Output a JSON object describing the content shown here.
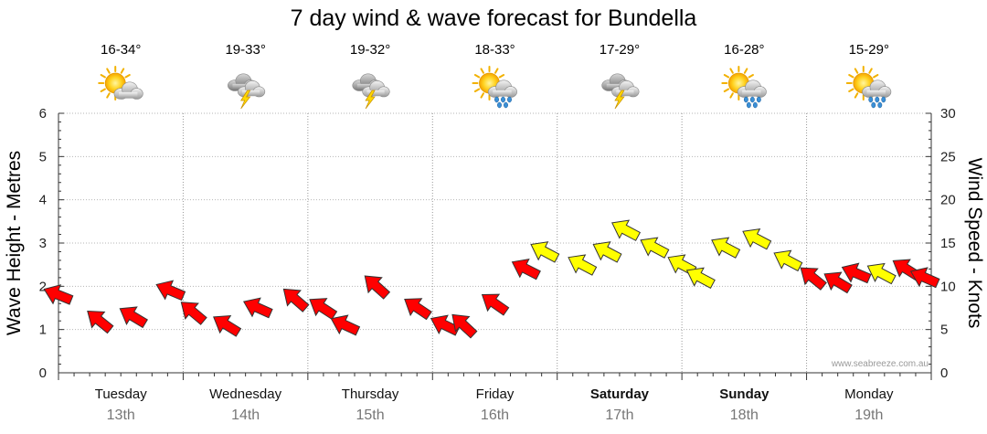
{
  "chart_data": {
    "type": "line",
    "title": "7 day wind & wave forecast for Bundella",
    "ylabel_left": "Wave Height - Metres",
    "ylabel_right": "Wind Speed - Knots",
    "ylim_left": [
      0,
      6
    ],
    "ylim_right": [
      0,
      30
    ],
    "left_ticks": [
      "0",
      "1",
      "2",
      "3",
      "4",
      "5",
      "6"
    ],
    "right_ticks": [
      "0",
      "5",
      "10",
      "15",
      "20",
      "25",
      "30"
    ],
    "grid": true,
    "credit": "www.seabreeze.com.au",
    "days": [
      {
        "name": "Tuesday",
        "date": "13th",
        "weekend": false,
        "temp": "16-34°",
        "icon": "sun-cloud-icon"
      },
      {
        "name": "Wednesday",
        "date": "14th",
        "weekend": false,
        "temp": "19-33°",
        "icon": "storm-cloud-icon"
      },
      {
        "name": "Thursday",
        "date": "15th",
        "weekend": false,
        "temp": "19-32°",
        "icon": "storm-cloud-icon"
      },
      {
        "name": "Friday",
        "date": "16th",
        "weekend": false,
        "temp": "18-33°",
        "icon": "sun-rain-icon"
      },
      {
        "name": "Saturday",
        "date": "17th",
        "weekend": true,
        "temp": "17-29°",
        "icon": "storm-cloud-icon"
      },
      {
        "name": "Sunday",
        "date": "18th",
        "weekend": true,
        "temp": "16-28°",
        "icon": "sun-rain-icon"
      },
      {
        "name": "Monday",
        "date": "19th",
        "weekend": false,
        "temp": "15-29°",
        "icon": "sun-rain-icon"
      }
    ],
    "series": [
      {
        "name": "Wind Speed - Knots",
        "marker": "arrow",
        "x_day": [
          0.0,
          0.33,
          0.6,
          0.9,
          1.08,
          1.35,
          1.6,
          1.9,
          2.12,
          2.3,
          2.55,
          2.88,
          3.1,
          3.25,
          3.5,
          3.75,
          3.9,
          4.2,
          4.4,
          4.55,
          4.78,
          5.0,
          5.15,
          5.35,
          5.6,
          5.85,
          6.05,
          6.25,
          6.4,
          6.6,
          6.8,
          6.95
        ],
        "y_knots": [
          9,
          6,
          6.5,
          9.5,
          7,
          5.5,
          7.5,
          8.5,
          7.5,
          5.5,
          10,
          7.5,
          5.5,
          5.5,
          8,
          12,
          14,
          12.5,
          14,
          16.5,
          14.5,
          12.5,
          11,
          14.5,
          15.5,
          13,
          11,
          10.5,
          11.5,
          11.5,
          12,
          11
        ],
        "colors": [
          "red",
          "red",
          "red",
          "red",
          "red",
          "red",
          "red",
          "red",
          "red",
          "red",
          "red",
          "red",
          "red",
          "red",
          "red",
          "red",
          "yellow",
          "yellow",
          "yellow",
          "yellow",
          "yellow",
          "yellow",
          "yellow",
          "yellow",
          "yellow",
          "yellow",
          "red",
          "red",
          "red",
          "yellow",
          "red",
          "red"
        ]
      }
    ],
    "arrow_colors": {
      "red": "#ff0000",
      "yellow": "#ffff00",
      "outline": "#333333"
    }
  }
}
